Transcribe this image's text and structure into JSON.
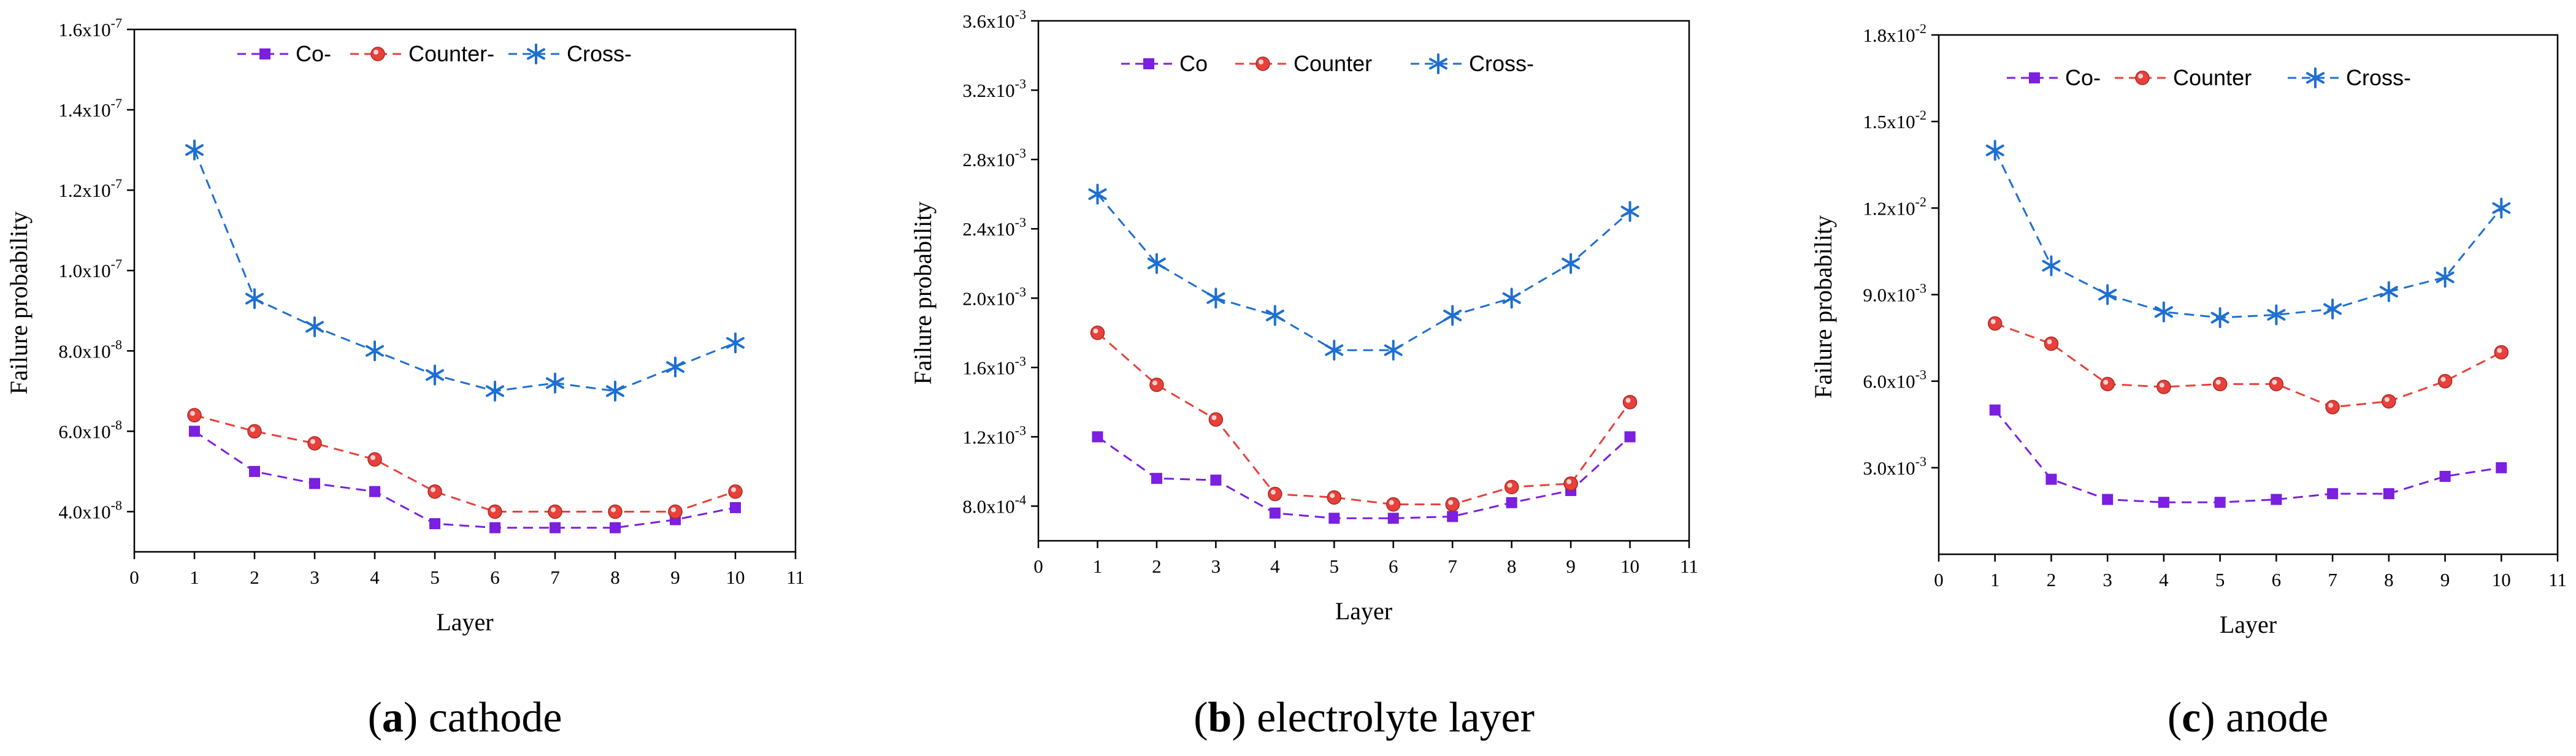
{
  "chart_data": [
    {
      "type": "line",
      "caption_letter": "a",
      "caption_text": "cathode",
      "xlabel": "Layer",
      "ylabel": "Failure probability",
      "x_ticks": [
        "0",
        "1",
        "2",
        "3",
        "4",
        "5",
        "6",
        "7",
        "8",
        "9",
        "10",
        "11"
      ],
      "xlim": [
        0,
        11
      ],
      "ylim": [
        3e-08,
        1.6e-07
      ],
      "y_ticks": [
        {
          "value": 4e-08,
          "mantissa": "4.0x10",
          "exp": "-8"
        },
        {
          "value": 6e-08,
          "mantissa": "6.0x10",
          "exp": "-8"
        },
        {
          "value": 8e-08,
          "mantissa": "8.0x10",
          "exp": "-8"
        },
        {
          "value": 1e-07,
          "mantissa": "1.0x10",
          "exp": "-7"
        },
        {
          "value": 1.2e-07,
          "mantissa": "1.2x10",
          "exp": "-7"
        },
        {
          "value": 1.4e-07,
          "mantissa": "1.4x10",
          "exp": "-7"
        },
        {
          "value": 1.6e-07,
          "mantissa": "1.6x10",
          "exp": "-7"
        }
      ],
      "x": [
        1,
        2,
        3,
        4,
        5,
        6,
        7,
        8,
        9,
        10
      ],
      "series": [
        {
          "name": "Co-",
          "color": "#7b1fe0",
          "marker": "square",
          "values": [
            6e-08,
            5e-08,
            4.7e-08,
            4.5e-08,
            3.7e-08,
            3.6e-08,
            3.6e-08,
            3.6e-08,
            3.8e-08,
            4.1e-08
          ]
        },
        {
          "name": "Counter-",
          "color": "#e8403a",
          "marker": "circle",
          "values": [
            6.4e-08,
            6e-08,
            5.7e-08,
            5.3e-08,
            4.5e-08,
            4e-08,
            4e-08,
            4e-08,
            4e-08,
            4.5e-08
          ]
        },
        {
          "name": "Cross-",
          "color": "#1e6fd0",
          "marker": "star",
          "values": [
            1.3e-07,
            9.3e-08,
            8.6e-08,
            8e-08,
            7.4e-08,
            7e-08,
            7.2e-08,
            7e-08,
            7.6e-08,
            8.2e-08
          ]
        }
      ]
    },
    {
      "type": "line",
      "caption_letter": "b",
      "caption_text": "electrolyte layer",
      "xlabel": "Layer",
      "ylabel": "Failure probability",
      "x_ticks": [
        "0",
        "1",
        "2",
        "3",
        "4",
        "5",
        "6",
        "7",
        "8",
        "9",
        "10",
        "11"
      ],
      "xlim": [
        0,
        11
      ],
      "ylim": [
        0.0006,
        0.0036
      ],
      "y_ticks": [
        {
          "value": 0.0008,
          "mantissa": "8.0x10",
          "exp": "-4"
        },
        {
          "value": 0.0012,
          "mantissa": "1.2x10",
          "exp": "-3"
        },
        {
          "value": 0.0016,
          "mantissa": "1.6x10",
          "exp": "-3"
        },
        {
          "value": 0.002,
          "mantissa": "2.0x10",
          "exp": "-3"
        },
        {
          "value": 0.0024,
          "mantissa": "2.4x10",
          "exp": "-3"
        },
        {
          "value": 0.0028,
          "mantissa": "2.8x10",
          "exp": "-3"
        },
        {
          "value": 0.0032,
          "mantissa": "3.2x10",
          "exp": "-3"
        },
        {
          "value": 0.0036,
          "mantissa": "3.6x10",
          "exp": "-3"
        }
      ],
      "x": [
        1,
        2,
        3,
        4,
        5,
        6,
        7,
        8,
        9,
        10
      ],
      "series": [
        {
          "name": "Co",
          "color": "#7b1fe0",
          "marker": "square",
          "values": [
            0.0012,
            0.00096,
            0.00095,
            0.00076,
            0.00073,
            0.00073,
            0.00074,
            0.00082,
            0.00089,
            0.0012
          ]
        },
        {
          "name": "Counter",
          "color": "#e8403a",
          "marker": "circle",
          "values": [
            0.0018,
            0.0015,
            0.0013,
            0.00087,
            0.00085,
            0.00081,
            0.00081,
            0.00091,
            0.00093,
            0.0014
          ]
        },
        {
          "name": "Cross-",
          "color": "#1e6fd0",
          "marker": "star",
          "values": [
            0.0026,
            0.0022,
            0.002,
            0.0019,
            0.0017,
            0.0017,
            0.0019,
            0.002,
            0.0022,
            0.0025
          ]
        }
      ]
    },
    {
      "type": "line",
      "caption_letter": "c",
      "caption_text": "anode",
      "xlabel": "Layer",
      "ylabel": "Failure probability",
      "x_ticks": [
        "0",
        "1",
        "2",
        "3",
        "4",
        "5",
        "6",
        "7",
        "8",
        "9",
        "10",
        "11"
      ],
      "xlim": [
        0,
        11
      ],
      "ylim": [
        0,
        0.018
      ],
      "y_ticks": [
        {
          "value": 0.003,
          "mantissa": "3.0x10",
          "exp": "-3"
        },
        {
          "value": 0.006,
          "mantissa": "6.0x10",
          "exp": "-3"
        },
        {
          "value": 0.009,
          "mantissa": "9.0x10",
          "exp": "-3"
        },
        {
          "value": 0.012,
          "mantissa": "1.2x10",
          "exp": "-2"
        },
        {
          "value": 0.015,
          "mantissa": "1.5x10",
          "exp": "-2"
        },
        {
          "value": 0.018,
          "mantissa": "1.8x10",
          "exp": "-2"
        }
      ],
      "x": [
        1,
        2,
        3,
        4,
        5,
        6,
        7,
        8,
        9,
        10
      ],
      "series": [
        {
          "name": "Co-",
          "color": "#7b1fe0",
          "marker": "square",
          "values": [
            0.005,
            0.0026,
            0.0019,
            0.0018,
            0.0018,
            0.0019,
            0.0021,
            0.0021,
            0.0027,
            0.003
          ]
        },
        {
          "name": "Counter",
          "color": "#e8403a",
          "marker": "circle",
          "values": [
            0.008,
            0.0073,
            0.0059,
            0.0058,
            0.0059,
            0.0059,
            0.0051,
            0.0053,
            0.006,
            0.007
          ]
        },
        {
          "name": "Cross-",
          "color": "#1e6fd0",
          "marker": "star",
          "values": [
            0.014,
            0.01,
            0.009,
            0.0084,
            0.0082,
            0.0083,
            0.0085,
            0.0091,
            0.0096,
            0.012
          ]
        }
      ]
    }
  ]
}
